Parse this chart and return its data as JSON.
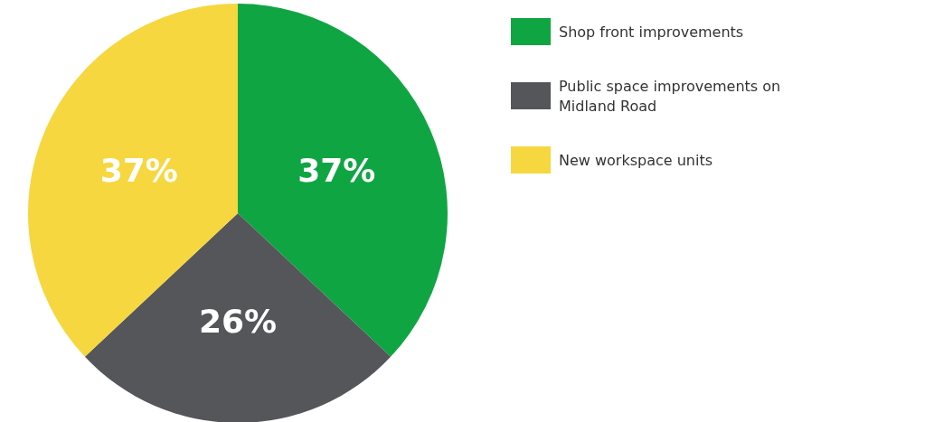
{
  "chart_data": {
    "type": "pie",
    "categories": [
      "Shop front improvements",
      "Public space improvements on Midland Road",
      "New workspace units"
    ],
    "values": [
      37,
      26,
      37
    ],
    "colors": [
      "#10a543",
      "#555659",
      "#f6d73f"
    ],
    "value_labels": [
      "37%",
      "26%",
      "37%"
    ],
    "legend": "right"
  }
}
